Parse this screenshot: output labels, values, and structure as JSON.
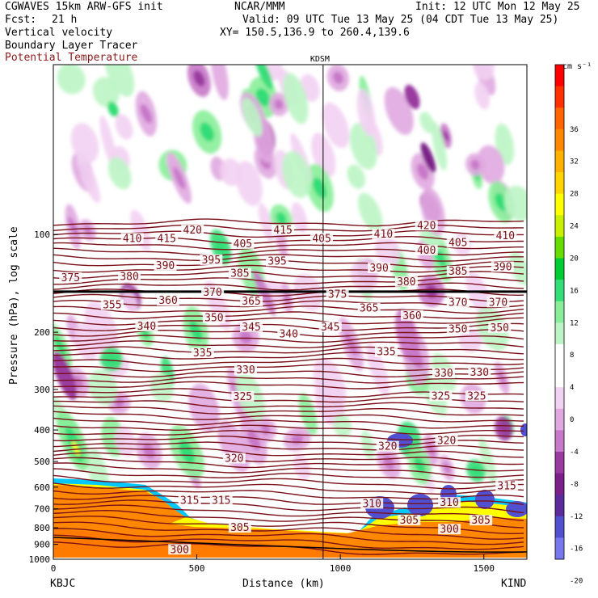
{
  "header": {
    "model": "CGWAVES 15km ARW-GFS init",
    "org": "NCAR/MMM",
    "init": "Init: 12 UTC Mon 12 May 25",
    "fcst_label": "Fcst:",
    "fcst_value": "21 h",
    "valid": "Valid: 09 UTC Tue 13 May 25 (04 CDT Tue 13 May 25)",
    "field1": "Vertical velocity",
    "field2": "Boundary Layer Tracer",
    "field3": "Potential Temperature",
    "xy": "XY= 150.5,136.9 to 260.4,139.6"
  },
  "colors": {
    "theta": "#7a1018",
    "field3_label": "#8b1a1a"
  },
  "colorbar": {
    "units": "cm s⁻¹",
    "levels": [
      "36",
      "32",
      "28",
      "24",
      "20",
      "16",
      "12",
      "8",
      "4",
      "0",
      "-4",
      "-8",
      "-12",
      "-16",
      "-20"
    ],
    "bins": [
      "#ff0000",
      "#ff3000",
      "#ff6400",
      "#ff8800",
      "#ffb000",
      "#ffd400",
      "#ffff00",
      "#c8f000",
      "#66dd00",
      "#00cc33",
      "#33dd77",
      "#88ee99",
      "#bbf5c4",
      "#ffffff",
      "#ffffff",
      "#f2d2f2",
      "#e0a8e0",
      "#c878c8",
      "#9a3aa0",
      "#7a2088",
      "#5c2a9c",
      "#5050d0",
      "#7777ee"
    ]
  },
  "chart_data": {
    "type": "heatmap",
    "title": "KDSM",
    "xlabel": "Distance (km)",
    "ylabel": "Pressure (hPa), log scale",
    "xlim": [
      0,
      1650
    ],
    "ylim": [
      1000,
      30
    ],
    "x_ticks": [
      "0",
      "500",
      "1000",
      "1500"
    ],
    "y_ticks": [
      "100",
      "200",
      "300",
      "400",
      "500",
      "600",
      "700",
      "800",
      "900",
      "1000"
    ],
    "y_tick_values": [
      100,
      200,
      300,
      400,
      500,
      600,
      700,
      800,
      900,
      1000
    ],
    "start_label": "KBJC",
    "end_label": "KIND",
    "marker_distance_km": 940,
    "theta_labels": [
      {
        "v": "410",
        "x": 275,
        "p": 103
      },
      {
        "v": "415",
        "x": 395,
        "p": 103
      },
      {
        "v": "420",
        "x": 485,
        "p": 97
      },
      {
        "v": "415",
        "x": 800,
        "p": 97
      },
      {
        "v": "405",
        "x": 935,
        "p": 103
      },
      {
        "v": "410",
        "x": 1150,
        "p": 100
      },
      {
        "v": "420",
        "x": 1300,
        "p": 94
      },
      {
        "v": "405",
        "x": 1410,
        "p": 106
      },
      {
        "v": "410",
        "x": 1575,
        "p": 101
      },
      {
        "v": "400",
        "x": 1300,
        "p": 112
      },
      {
        "v": "405",
        "x": 660,
        "p": 107
      },
      {
        "v": "395",
        "x": 780,
        "p": 121
      },
      {
        "v": "390",
        "x": 390,
        "p": 125
      },
      {
        "v": "395",
        "x": 550,
        "p": 120
      },
      {
        "v": "385",
        "x": 650,
        "p": 132
      },
      {
        "v": "390",
        "x": 1135,
        "p": 127
      },
      {
        "v": "385",
        "x": 1410,
        "p": 130
      },
      {
        "v": "390",
        "x": 1565,
        "p": 126
      },
      {
        "v": "375",
        "x": 60,
        "p": 136
      },
      {
        "v": "380",
        "x": 265,
        "p": 135
      },
      {
        "v": "380",
        "x": 1230,
        "p": 140
      },
      {
        "v": "370",
        "x": 555,
        "p": 151
      },
      {
        "v": "375",
        "x": 990,
        "p": 153
      },
      {
        "v": "370",
        "x": 1410,
        "p": 162
      },
      {
        "v": "370",
        "x": 1550,
        "p": 162
      },
      {
        "v": "355",
        "x": 205,
        "p": 165
      },
      {
        "v": "360",
        "x": 400,
        "p": 160
      },
      {
        "v": "365",
        "x": 690,
        "p": 161
      },
      {
        "v": "365",
        "x": 1100,
        "p": 169
      },
      {
        "v": "360",
        "x": 1250,
        "p": 178
      },
      {
        "v": "340",
        "x": 325,
        "p": 192
      },
      {
        "v": "350",
        "x": 560,
        "p": 181
      },
      {
        "v": "345",
        "x": 690,
        "p": 193
      },
      {
        "v": "340",
        "x": 820,
        "p": 203
      },
      {
        "v": "345",
        "x": 965,
        "p": 193
      },
      {
        "v": "350",
        "x": 1410,
        "p": 196
      },
      {
        "v": "350",
        "x": 1555,
        "p": 194
      },
      {
        "v": "335",
        "x": 520,
        "p": 232
      },
      {
        "v": "335",
        "x": 1160,
        "p": 230
      },
      {
        "v": "330",
        "x": 670,
        "p": 262
      },
      {
        "v": "330",
        "x": 1360,
        "p": 268
      },
      {
        "v": "330",
        "x": 1485,
        "p": 266
      },
      {
        "v": "325",
        "x": 660,
        "p": 316
      },
      {
        "v": "325",
        "x": 1350,
        "p": 315
      },
      {
        "v": "325",
        "x": 1475,
        "p": 315
      },
      {
        "v": "320",
        "x": 630,
        "p": 490
      },
      {
        "v": "320",
        "x": 1165,
        "p": 450
      },
      {
        "v": "320",
        "x": 1370,
        "p": 432
      },
      {
        "v": "315",
        "x": 475,
        "p": 660
      },
      {
        "v": "315",
        "x": 585,
        "p": 660
      },
      {
        "v": "315",
        "x": 1580,
        "p": 595
      },
      {
        "v": "310",
        "x": 1110,
        "p": 675
      },
      {
        "v": "310",
        "x": 1380,
        "p": 670
      },
      {
        "v": "305",
        "x": 650,
        "p": 800
      },
      {
        "v": "305",
        "x": 1240,
        "p": 760
      },
      {
        "v": "305",
        "x": 1490,
        "p": 760
      },
      {
        "v": "300",
        "x": 440,
        "p": 935
      },
      {
        "v": "300",
        "x": 1380,
        "p": 810
      }
    ]
  }
}
